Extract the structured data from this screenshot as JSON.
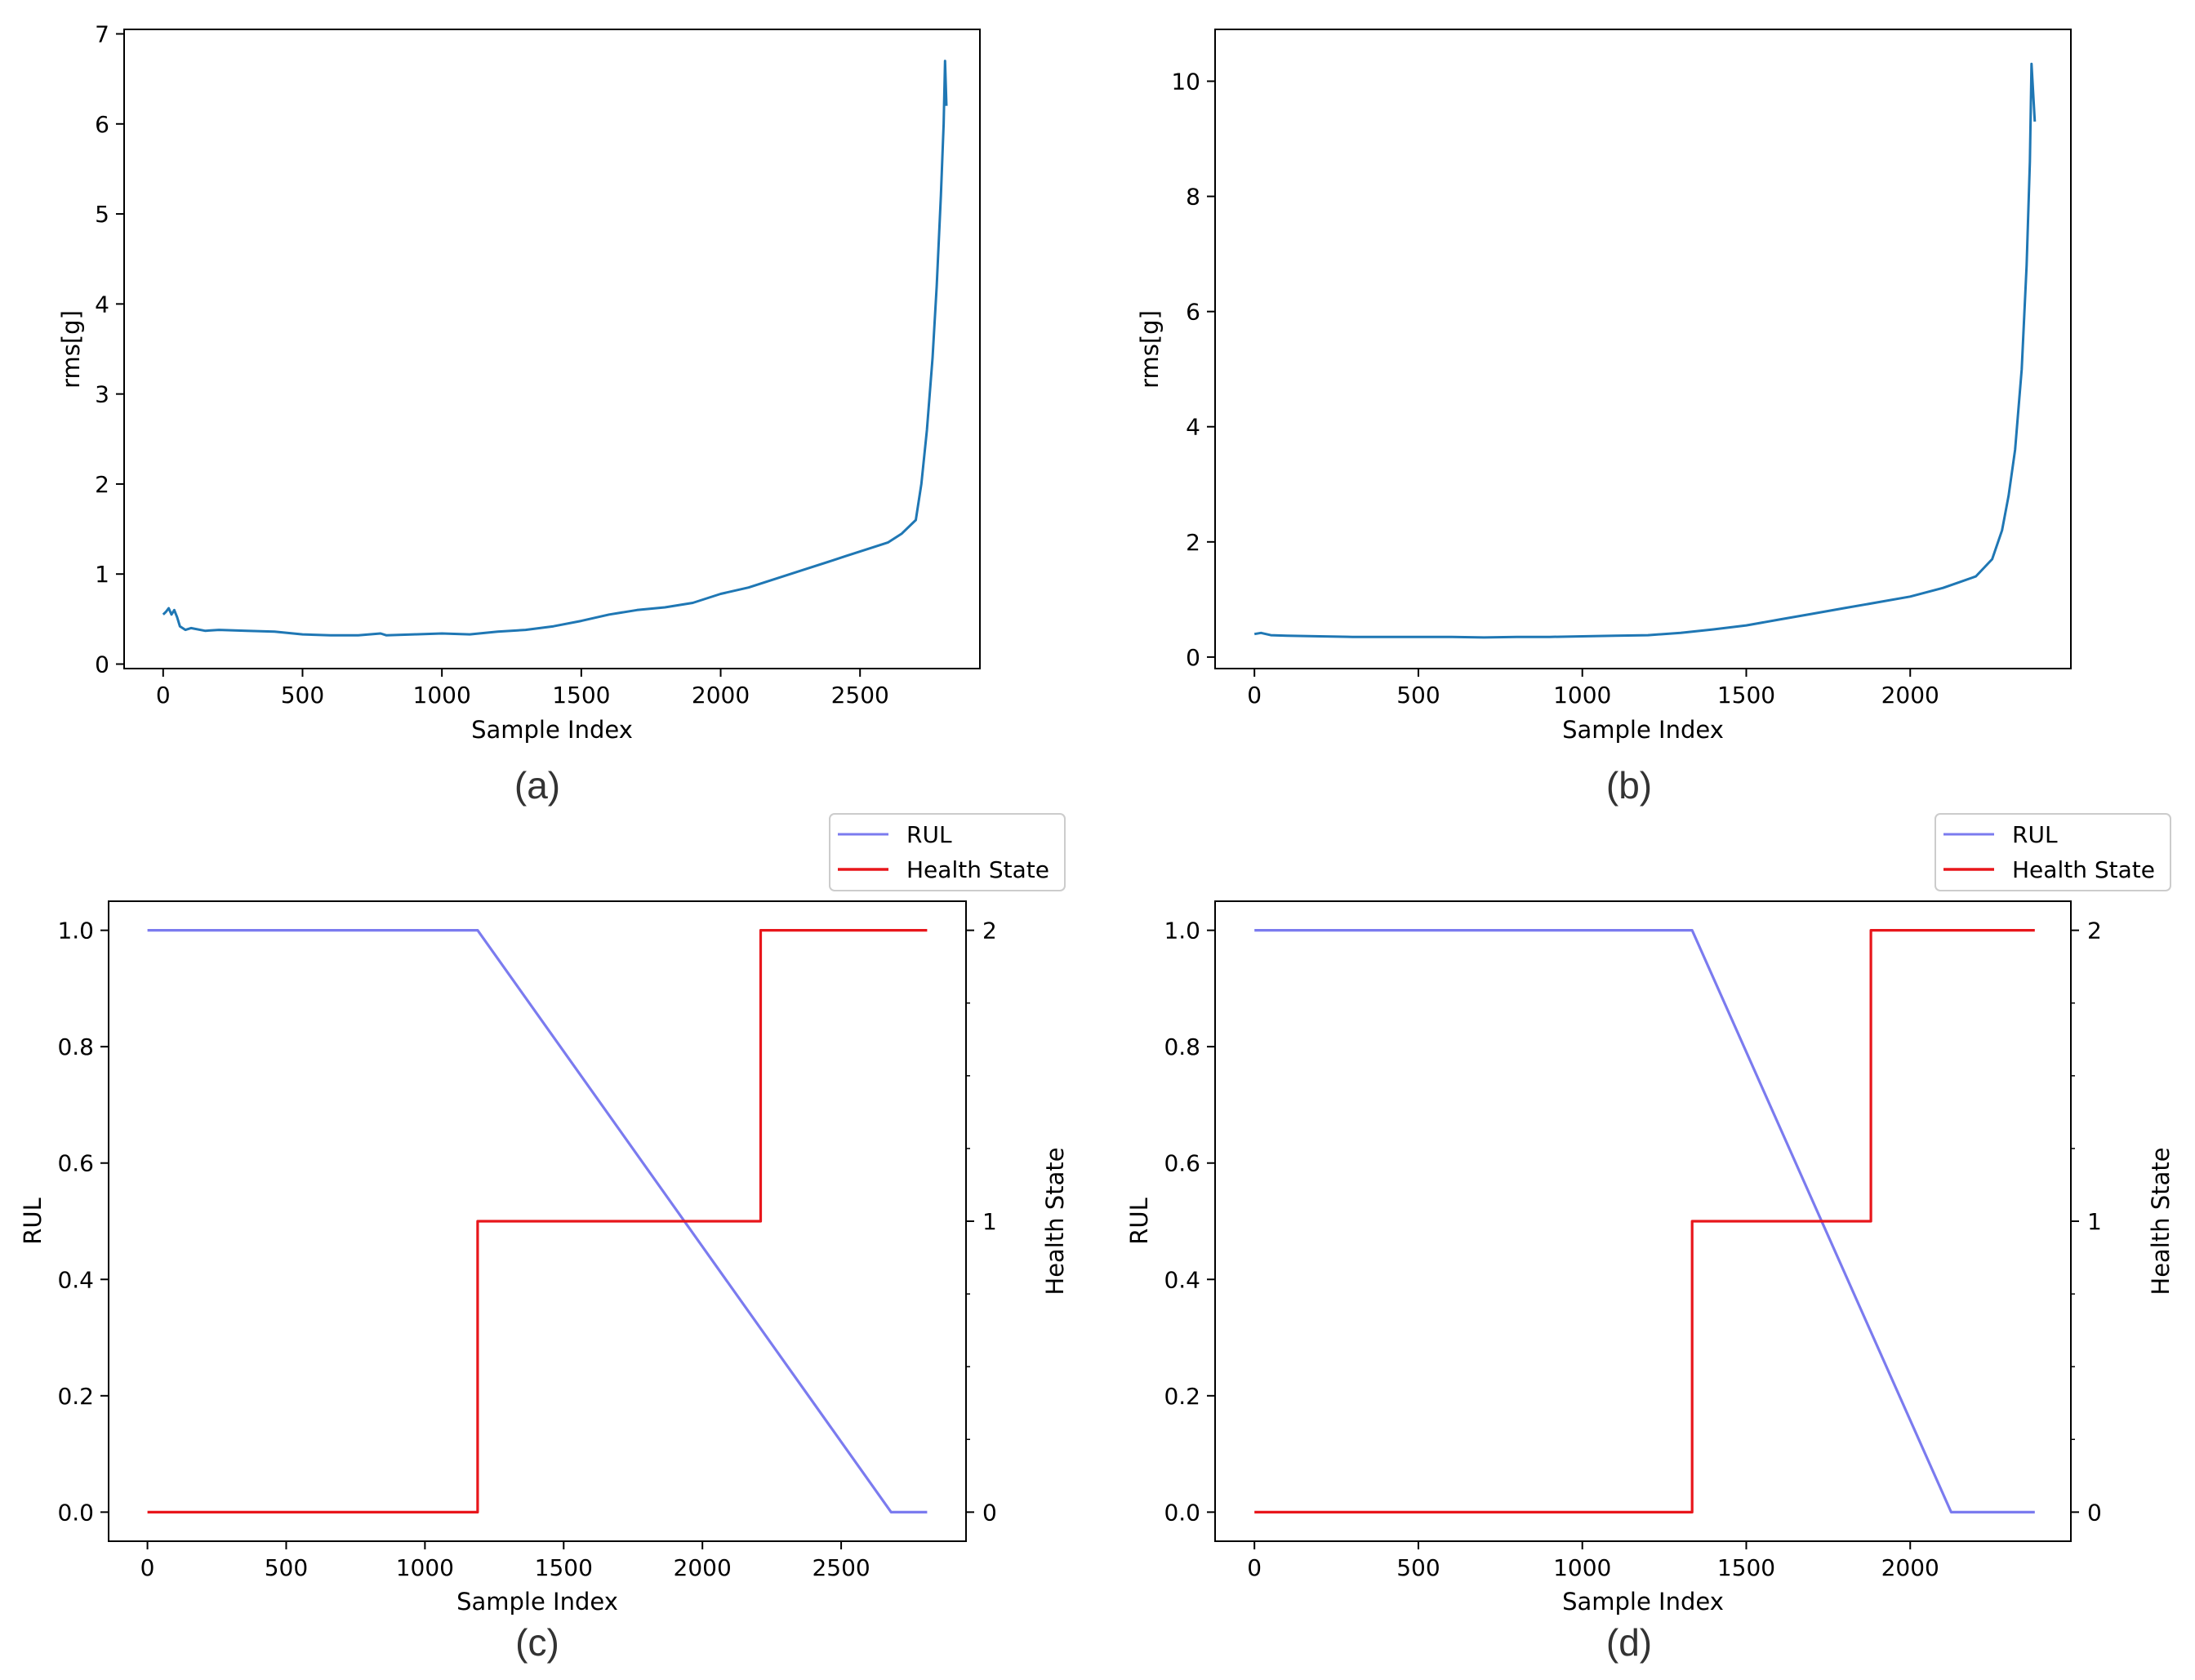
{
  "chart_data": [
    {
      "id": "a",
      "type": "line",
      "caption": "(a)",
      "xlabel": "Sample Index",
      "ylabel": "rms[g]",
      "xlim": [
        -140,
        2930
      ],
      "ylim": [
        -0.05,
        7.05
      ],
      "xticks": [
        0,
        500,
        1000,
        1500,
        2000,
        2500
      ],
      "yticks": [
        0,
        1,
        2,
        3,
        4,
        5,
        6,
        7
      ],
      "series": [
        {
          "name": "rms",
          "color": "#1f77b4",
          "x": [
            0,
            10,
            20,
            30,
            40,
            50,
            60,
            80,
            100,
            150,
            200,
            300,
            400,
            500,
            600,
            700,
            780,
            800,
            900,
            1000,
            1100,
            1200,
            1300,
            1400,
            1500,
            1600,
            1700,
            1800,
            1900,
            2000,
            2100,
            2200,
            2300,
            2400,
            2450,
            2500,
            2550,
            2600,
            2650,
            2700,
            2720,
            2740,
            2760,
            2775,
            2790,
            2800,
            2805,
            2810
          ],
          "y": [
            0.55,
            0.58,
            0.62,
            0.55,
            0.6,
            0.52,
            0.42,
            0.38,
            0.4,
            0.37,
            0.38,
            0.37,
            0.36,
            0.33,
            0.32,
            0.32,
            0.34,
            0.32,
            0.33,
            0.34,
            0.33,
            0.36,
            0.38,
            0.42,
            0.48,
            0.55,
            0.6,
            0.63,
            0.68,
            0.78,
            0.85,
            0.95,
            1.05,
            1.15,
            1.2,
            1.25,
            1.3,
            1.35,
            1.45,
            1.6,
            2.0,
            2.6,
            3.4,
            4.2,
            5.2,
            6.0,
            6.7,
            6.2
          ]
        }
      ]
    },
    {
      "id": "b",
      "type": "line",
      "caption": "(b)",
      "xlabel": "Sample Index",
      "ylabel": "rms[g]",
      "xlim": [
        -120,
        2490
      ],
      "ylim": [
        -0.2,
        10.9
      ],
      "xticks": [
        0,
        500,
        1000,
        1500,
        2000
      ],
      "yticks": [
        0,
        2,
        4,
        6,
        8,
        10
      ],
      "series": [
        {
          "name": "rms",
          "color": "#1f77b4",
          "x": [
            0,
            20,
            50,
            100,
            200,
            300,
            400,
            500,
            600,
            700,
            800,
            900,
            1000,
            1100,
            1200,
            1300,
            1400,
            1500,
            1600,
            1700,
            1800,
            1900,
            2000,
            2100,
            2150,
            2200,
            2250,
            2280,
            2300,
            2320,
            2340,
            2355,
            2365,
            2370,
            2375,
            2380
          ],
          "y": [
            0.4,
            0.42,
            0.38,
            0.37,
            0.36,
            0.35,
            0.35,
            0.35,
            0.35,
            0.34,
            0.35,
            0.35,
            0.36,
            0.37,
            0.38,
            0.42,
            0.48,
            0.55,
            0.65,
            0.75,
            0.85,
            0.95,
            1.05,
            1.2,
            1.3,
            1.4,
            1.7,
            2.2,
            2.8,
            3.6,
            5.0,
            6.8,
            8.6,
            10.3,
            9.8,
            9.3
          ]
        }
      ]
    },
    {
      "id": "c",
      "type": "line",
      "caption": "(c)",
      "xlabel": "Sample Index",
      "ylabel": "RUL",
      "y2label": "Health State",
      "xlim": [
        -140,
        2950
      ],
      "ylim": [
        -0.05,
        1.05
      ],
      "y2lim": [
        -0.1,
        2.1
      ],
      "xticks": [
        0,
        500,
        1000,
        1500,
        2000,
        2500
      ],
      "yticks": [
        "0.0",
        "0.2",
        "0.4",
        "0.6",
        "0.8",
        "1.0"
      ],
      "y2ticks": [
        0,
        1,
        2
      ],
      "legend": {
        "position": "above-right",
        "entries": [
          "RUL",
          "Health State"
        ]
      },
      "series": [
        {
          "name": "RUL",
          "axis": "left",
          "color": "#7b7bef",
          "x": [
            0,
            1190,
            2680,
            2810
          ],
          "y": [
            1.0,
            1.0,
            0.0,
            0.0
          ]
        },
        {
          "name": "Health State",
          "axis": "right",
          "color": "#e8161b",
          "x": [
            0,
            1190,
            1190,
            2210,
            2210,
            2810
          ],
          "y": [
            0,
            0,
            1,
            1,
            2,
            2
          ]
        }
      ]
    },
    {
      "id": "d",
      "type": "line",
      "caption": "(d)",
      "xlabel": "Sample Index",
      "ylabel": "RUL",
      "y2label": "Health State",
      "xlim": [
        -120,
        2490
      ],
      "ylim": [
        -0.05,
        1.05
      ],
      "y2lim": [
        -0.1,
        2.1
      ],
      "xticks": [
        0,
        500,
        1000,
        1500,
        2000
      ],
      "yticks": [
        "0.0",
        "0.2",
        "0.4",
        "0.6",
        "0.8",
        "1.0"
      ],
      "y2ticks": [
        0,
        1,
        2
      ],
      "legend": {
        "position": "above-right",
        "entries": [
          "RUL",
          "Health State"
        ]
      },
      "series": [
        {
          "name": "RUL",
          "axis": "left",
          "color": "#7b7bef",
          "x": [
            0,
            1335,
            2125,
            2380
          ],
          "y": [
            1.0,
            1.0,
            0.0,
            0.0
          ]
        },
        {
          "name": "Health State",
          "axis": "right",
          "color": "#e8161b",
          "x": [
            0,
            1335,
            1335,
            1880,
            1880,
            2380
          ],
          "y": [
            0,
            0,
            1,
            1,
            2,
            2
          ]
        }
      ]
    }
  ]
}
